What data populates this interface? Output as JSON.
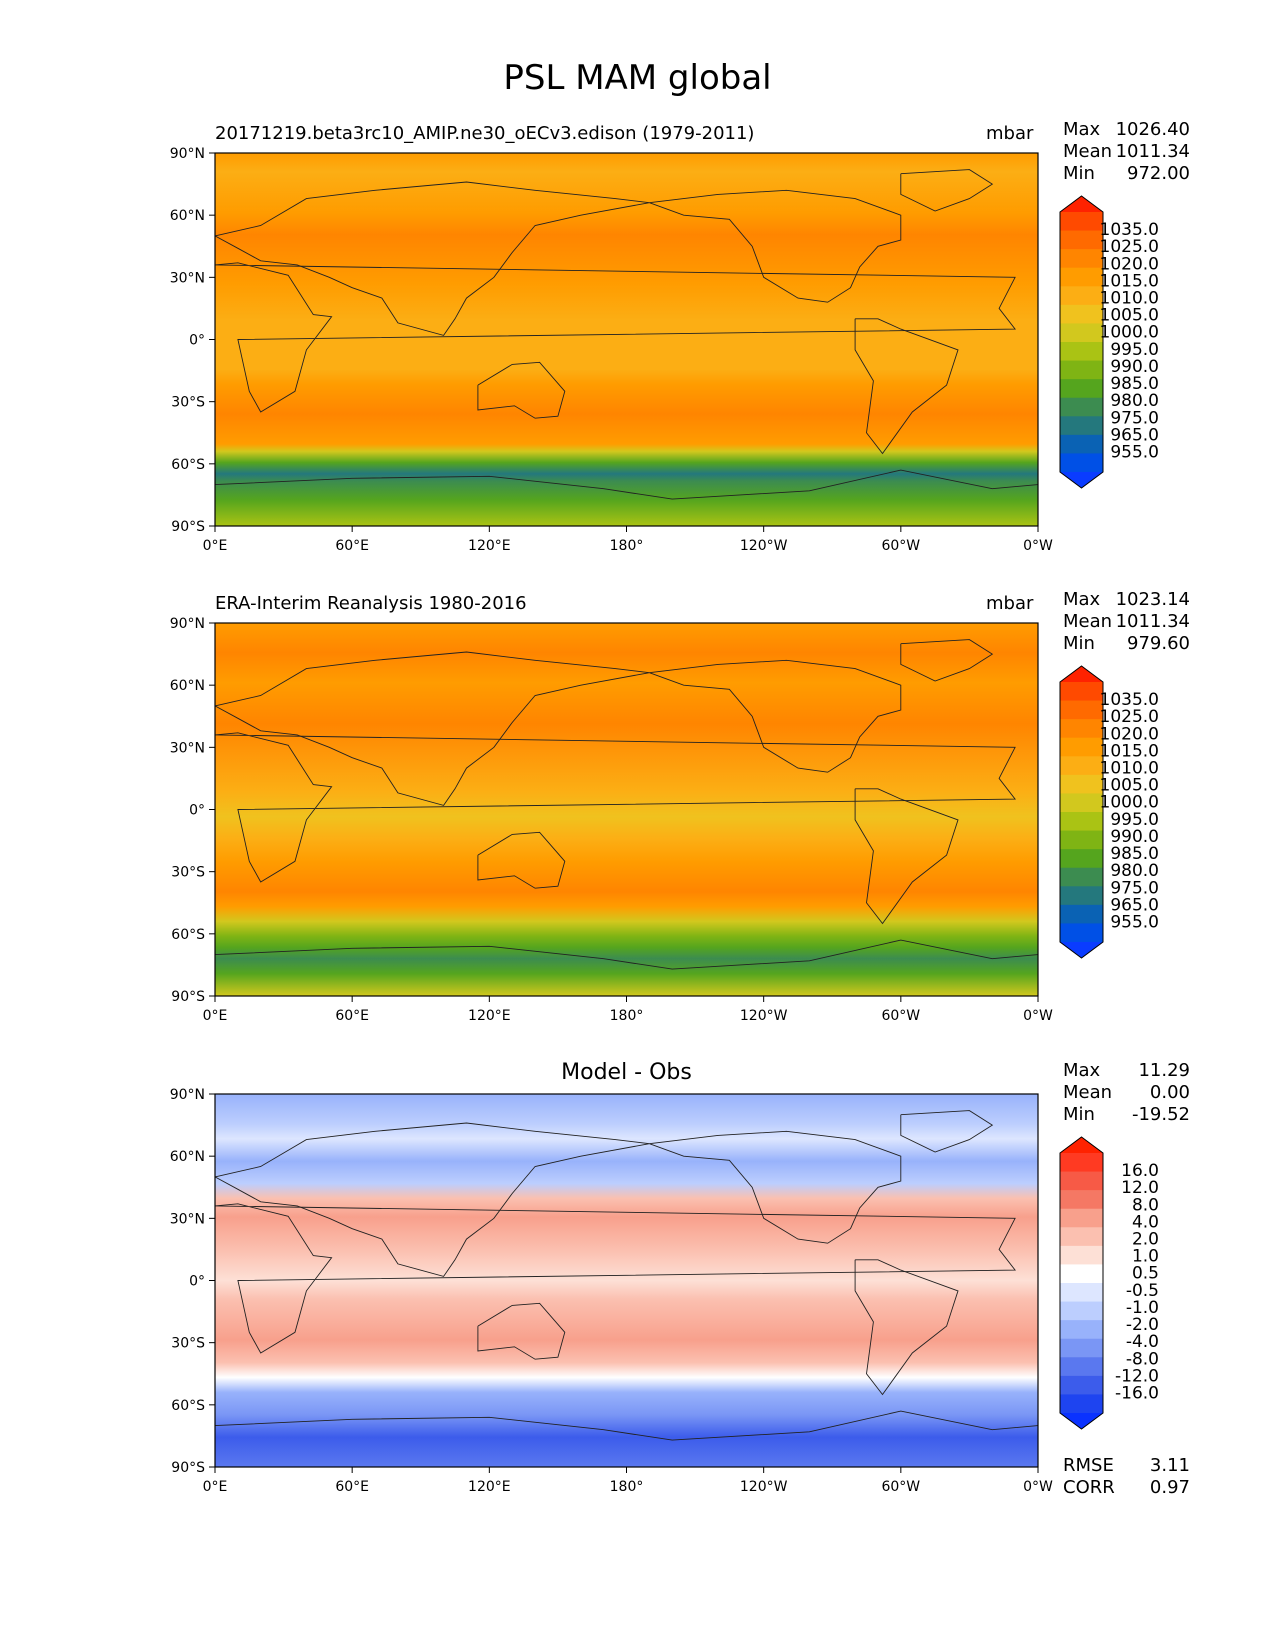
{
  "title": "PSL MAM global",
  "axes": {
    "lat_ticks": [
      "90°N",
      "60°N",
      "30°N",
      "0°",
      "30°S",
      "60°S",
      "90°S"
    ],
    "lon_ticks": [
      "0°E",
      "60°E",
      "120°E",
      "180°",
      "120°W",
      "60°W",
      "0°W"
    ]
  },
  "panels": [
    {
      "title": "20171219.beta3rc10_AMIP.ne30_oECv3.edison (1979-2011)",
      "units": "mbar",
      "stats": [
        {
          "label": "Max",
          "value": "1026.40"
        },
        {
          "label": "Mean",
          "value": "1011.34"
        },
        {
          "label": "Min",
          "value": "972.00"
        }
      ],
      "colorbar": {
        "labels": [
          "1035.0",
          "1025.0",
          "1020.0",
          "1015.0",
          "1010.0",
          "1005.0",
          "1000.0",
          "995.0",
          "990.0",
          "985.0",
          "980.0",
          "975.0",
          "965.0",
          "955.0"
        ],
        "colors": [
          "#ff2200",
          "#ff4a00",
          "#ff6a00",
          "#ff8500",
          "#ff9c00",
          "#fcae14",
          "#f0c21e",
          "#d2c81e",
          "#aac314",
          "#7fb414",
          "#55a51e",
          "#3c8c50",
          "#24787d",
          "#0a62b4",
          "#0050e6",
          "#0a3cff"
        ]
      }
    },
    {
      "title": "ERA-Interim Reanalysis 1980-2016",
      "units": "mbar",
      "stats": [
        {
          "label": "Max",
          "value": "1023.14"
        },
        {
          "label": "Mean",
          "value": "1011.34"
        },
        {
          "label": "Min",
          "value": "979.60"
        }
      ],
      "colorbar": {
        "labels": [
          "1035.0",
          "1025.0",
          "1020.0",
          "1015.0",
          "1010.0",
          "1005.0",
          "1000.0",
          "995.0",
          "990.0",
          "985.0",
          "980.0",
          "975.0",
          "965.0",
          "955.0"
        ],
        "colors": [
          "#ff2200",
          "#ff4a00",
          "#ff6a00",
          "#ff8500",
          "#ff9c00",
          "#fcae14",
          "#f0c21e",
          "#d2c81e",
          "#aac314",
          "#7fb414",
          "#55a51e",
          "#3c8c50",
          "#24787d",
          "#0a62b4",
          "#0050e6",
          "#0a3cff"
        ]
      }
    },
    {
      "title": "Model - Obs",
      "units": "",
      "stats": [
        {
          "label": "Max",
          "value": "11.29"
        },
        {
          "label": "Mean",
          "value": "0.00"
        },
        {
          "label": "Min",
          "value": "-19.52"
        }
      ],
      "colorbar": {
        "labels": [
          "16.0",
          "12.0",
          "8.0",
          "4.0",
          "2.0",
          "1.0",
          "0.5",
          "-0.5",
          "-1.0",
          "-2.0",
          "-4.0",
          "-8.0",
          "-12.0",
          "-16.0"
        ],
        "colors": [
          "#ff2200",
          "#ff3a22",
          "#f75a46",
          "#f57864",
          "#f8a08c",
          "#fbc0b0",
          "#fde0d6",
          "#ffffff",
          "#dde6ff",
          "#bccefe",
          "#98b2fb",
          "#7a96f5",
          "#5a78ef",
          "#3c5ceb",
          "#1e44f0",
          "#0a32ff"
        ]
      },
      "metrics": [
        {
          "label": "RMSE",
          "value": "3.11"
        },
        {
          "label": "CORR",
          "value": "0.97"
        }
      ]
    }
  ],
  "chart_data": [
    {
      "type": "heatmap",
      "title": "20171219.beta3rc10_AMIP.ne30_oECv3.edison (1979-2011)",
      "variable": "PSL",
      "units": "mbar",
      "xlim": [
        0,
        360
      ],
      "ylim": [
        -90,
        90
      ],
      "max": 1026.4,
      "mean": 1011.34,
      "min": 972.0,
      "contour_levels": [
        955,
        965,
        975,
        980,
        985,
        990,
        995,
        1000,
        1005,
        1010,
        1015,
        1020,
        1025,
        1035
      ]
    },
    {
      "type": "heatmap",
      "title": "ERA-Interim Reanalysis 1980-2016",
      "variable": "PSL",
      "units": "mbar",
      "xlim": [
        0,
        360
      ],
      "ylim": [
        -90,
        90
      ],
      "max": 1023.14,
      "mean": 1011.34,
      "min": 979.6,
      "contour_levels": [
        955,
        965,
        975,
        980,
        985,
        990,
        995,
        1000,
        1005,
        1010,
        1015,
        1020,
        1025,
        1035
      ]
    },
    {
      "type": "heatmap",
      "title": "Model - Obs",
      "xlim": [
        0,
        360
      ],
      "ylim": [
        -90,
        90
      ],
      "max": 11.29,
      "mean": 0.0,
      "min": -19.52,
      "rmse": 3.11,
      "corr": 0.97,
      "contour_levels": [
        -16,
        -12,
        -8,
        -4,
        -2,
        -1,
        -0.5,
        0.5,
        1,
        2,
        4,
        8,
        12,
        16
      ]
    }
  ]
}
